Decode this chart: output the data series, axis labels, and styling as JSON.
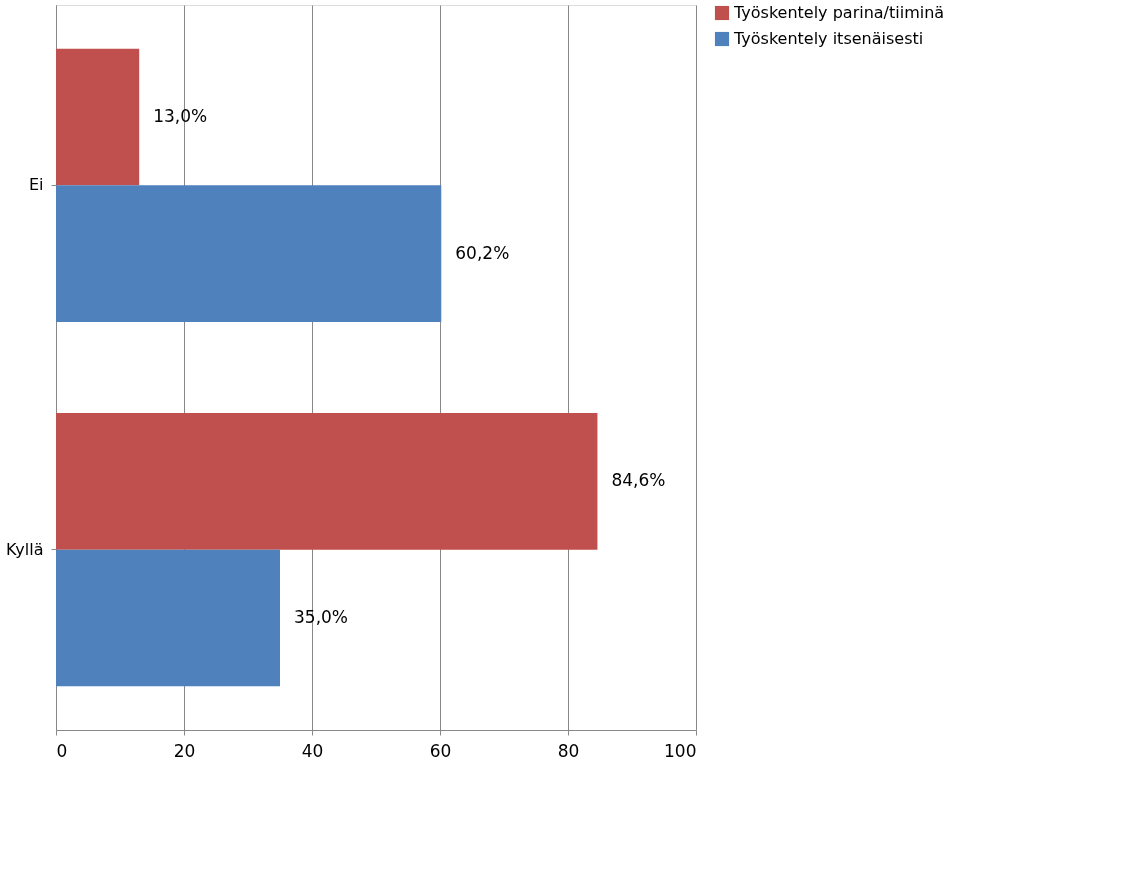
{
  "chart_data": {
    "type": "bar",
    "orientation": "horizontal",
    "categories": [
      "Ei",
      "Kyllä"
    ],
    "series": [
      {
        "name": "Työskentely parina/tiiminä",
        "color": "#c0504d",
        "values": [
          13.0,
          84.6
        ],
        "value_labels": [
          "13,0%",
          "84,6%"
        ]
      },
      {
        "name": "Työskentely itsenäisesti",
        "color": "#4f81bd",
        "values": [
          60.2,
          35.0
        ],
        "value_labels": [
          "60,2%",
          "35,0%"
        ]
      }
    ],
    "xlim": [
      0,
      100
    ],
    "xticks": [
      0,
      20,
      40,
      60,
      80,
      100
    ],
    "grid": "x",
    "legend": "right"
  }
}
